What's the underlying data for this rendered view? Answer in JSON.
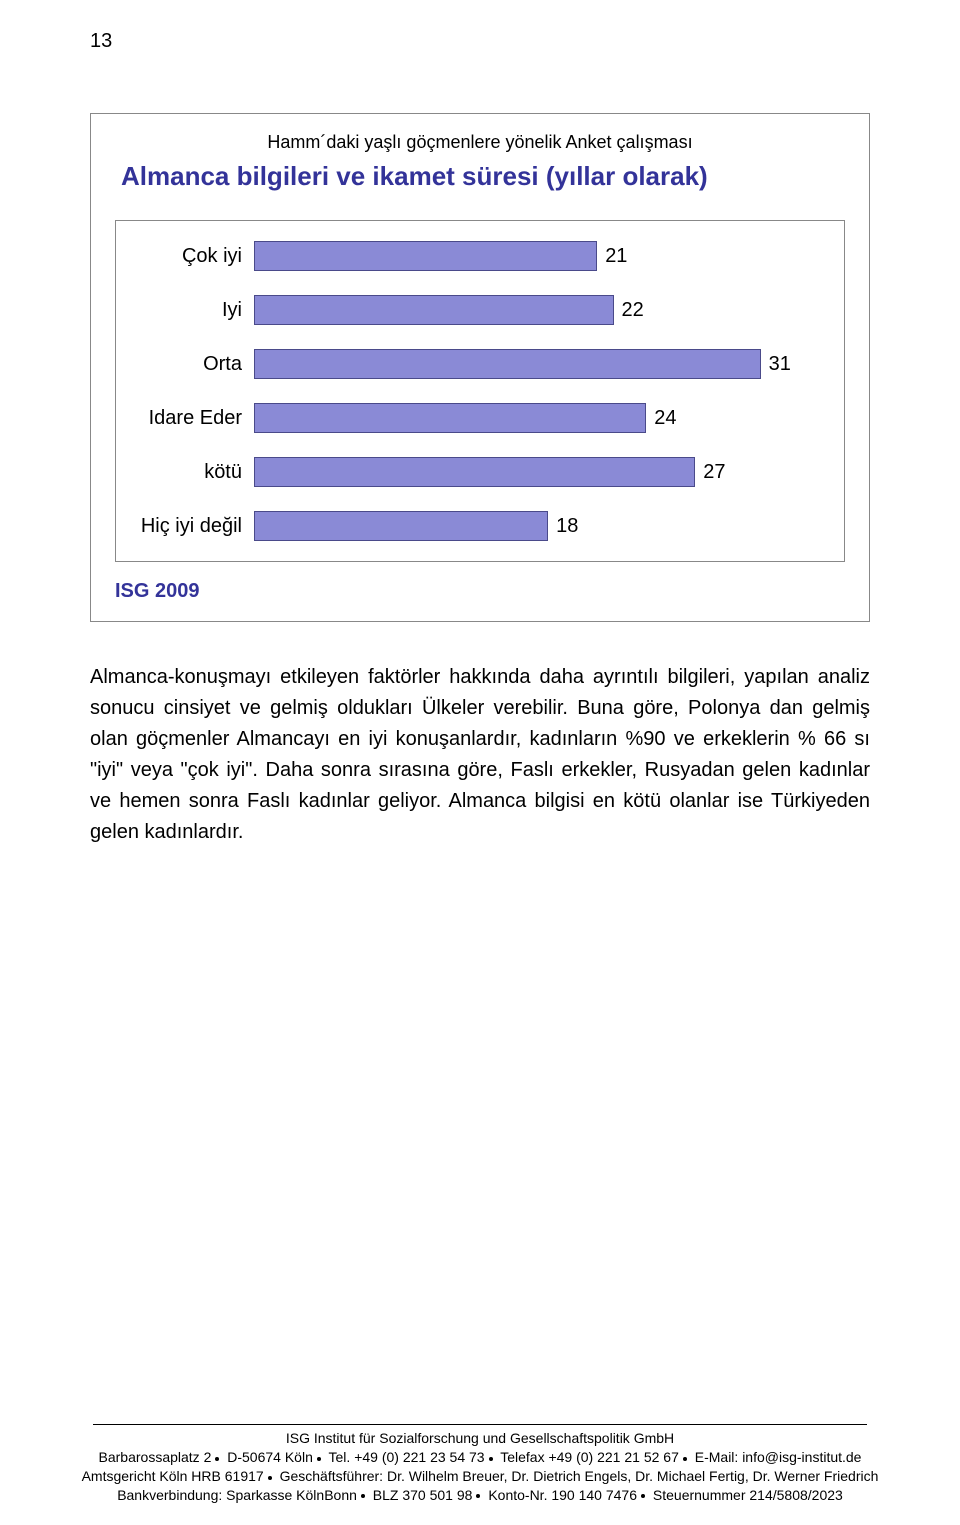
{
  "page_number": "13",
  "chart": {
    "header": "Hamm´daki yaşlı göçmenlere yönelik Anket çalışması",
    "title": "Almanca bilgileri ve ikamet süresi (yıllar olarak)",
    "type": "bar",
    "max_value": 35,
    "bar_color": "#8a8ad6",
    "bar_border": "#4a4a8a",
    "categories": [
      {
        "label": "Çok iyi",
        "value": 21
      },
      {
        "label": "Iyi",
        "value": 22
      },
      {
        "label": "Orta",
        "value": 31
      },
      {
        "label": "Idare Eder",
        "value": 24
      },
      {
        "label": "kötü",
        "value": 27
      },
      {
        "label": "Hiç iyi değil",
        "value": 18
      }
    ],
    "footer": "ISG 2009"
  },
  "body_text": "Almanca-konuşmayı etkileyen faktörler hakkında daha ayrıntılı bilgileri, yapılan analiz sonucu cinsiyet ve gelmiş oldukları Ülkeler verebilir. Buna göre, Polonya dan gelmiş olan göçmenler Almancayı en iyi konuşanlardır, kadınların %90 ve erkeklerin % 66 sı \"iyi\" veya \"çok iyi\". Daha sonra sırasına göre, Faslı erkekler, Rusyadan gelen kadınlar ve hemen sonra Faslı kadınlar geliyor. Almanca bilgisi en kötü olanlar ise Türkiyeden gelen kadınlardır.",
  "footer": {
    "line1_a": "ISG Institut für Sozialforschung und Gesellschaftspolitik GmbH",
    "line2_a": "Barbarossaplatz 2",
    "line2_b": "D-50674 Köln",
    "line2_c": "Tel. +49 (0) 221 23 54 73",
    "line2_d": "Telefax +49 (0) 221 21 52 67",
    "line2_e": "E-Mail: info@isg-institut.de",
    "line3_a": "Amtsgericht Köln HRB 61917",
    "line3_b": "Geschäftsführer: Dr. Wilhelm Breuer, Dr. Dietrich Engels, Dr. Michael Fertig, Dr. Werner Friedrich",
    "line4_a": "Bankverbindung: Sparkasse KölnBonn",
    "line4_b": "BLZ 370 501 98",
    "line4_c": "Konto-Nr. 190 140 7476",
    "line4_d": "Steuernummer 214/5808/2023"
  }
}
